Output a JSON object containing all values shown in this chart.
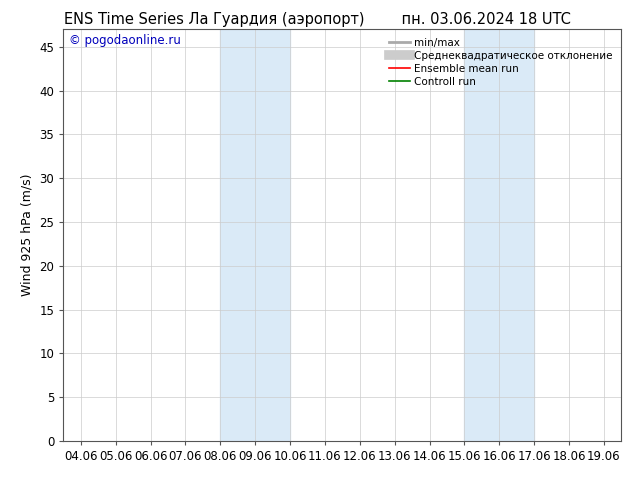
{
  "title_left": "ENS Time Series Ла Гуардия (аэропорт)",
  "title_right": "пн. 03.06.2024 18 UTC",
  "ylabel": "Wind 925 hPa (m/s)",
  "watermark": "© pogodaonline.ru",
  "x_labels": [
    "04.06",
    "05.06",
    "06.06",
    "07.06",
    "08.06",
    "09.06",
    "10.06",
    "11.06",
    "12.06",
    "13.06",
    "14.06",
    "15.06",
    "16.06",
    "17.06",
    "18.06",
    "19.06"
  ],
  "x_ticks": [
    0,
    1,
    2,
    3,
    4,
    5,
    6,
    7,
    8,
    9,
    10,
    11,
    12,
    13,
    14,
    15
  ],
  "ylim": [
    0,
    47
  ],
  "yticks": [
    0,
    5,
    10,
    15,
    20,
    25,
    30,
    35,
    40,
    45
  ],
  "bg_color": "#ffffff",
  "plot_bg_color": "#ffffff",
  "shaded_regions": [
    {
      "x_start": 4.0,
      "x_end": 6.0,
      "color": "#daeaf7"
    },
    {
      "x_start": 11.0,
      "x_end": 13.0,
      "color": "#daeaf7"
    }
  ],
  "legend_entries": [
    {
      "label": "min/max",
      "color": "#aaaaaa",
      "linewidth": 2.0,
      "linestyle": "-"
    },
    {
      "label": "Среднеквадратическое отклонение",
      "color": "#cccccc",
      "linewidth": 7,
      "linestyle": "-"
    },
    {
      "label": "Ensemble mean run",
      "color": "#ff0000",
      "linewidth": 1.2,
      "linestyle": "-"
    },
    {
      "label": "Controll run",
      "color": "#008000",
      "linewidth": 1.2,
      "linestyle": "-"
    }
  ],
  "title_fontsize": 10.5,
  "axis_label_fontsize": 9,
  "tick_fontsize": 8.5,
  "legend_fontsize": 7.5,
  "watermark_color": "#0000bb",
  "watermark_fontsize": 8.5,
  "grid_color": "#cccccc",
  "spine_color": "#555555"
}
